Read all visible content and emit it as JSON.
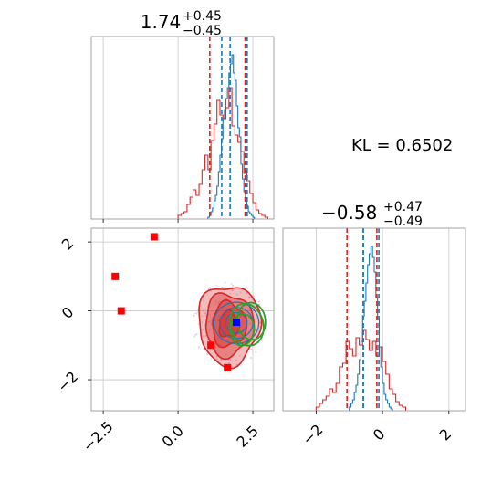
{
  "chart_data": {
    "type": "corner",
    "panels": [
      {
        "id": "hist-x",
        "type": "histogram",
        "title": {
          "value": "1.74",
          "plus": "+0.45",
          "minus": "−0.45"
        },
        "xlim": [
          -2.9,
          3.2
        ],
        "ylim": [
          0,
          1.0
        ],
        "grid": true,
        "quantiles": [
          {
            "color": "#d62728",
            "values": [
              1.06,
              2.24
            ]
          },
          {
            "color": "#1f77b4",
            "values": [
              1.46,
              2.31
            ]
          },
          {
            "color": "#1f77b4",
            "median": 1.74
          }
        ],
        "series": [
          {
            "color": "#d62728",
            "bin_start": 0.0,
            "bin_width": 0.1,
            "counts": [
              0.02,
              0.03,
              0.04,
              0.08,
              0.12,
              0.16,
              0.13,
              0.19,
              0.27,
              0.35,
              0.27,
              0.43,
              0.52,
              0.65,
              0.57,
              0.55,
              0.61,
              0.72,
              0.51,
              0.46,
              0.42,
              0.37,
              0.25,
              0.21,
              0.14,
              0.09,
              0.05,
              0.03,
              0.02,
              0.01
            ]
          },
          {
            "color": "#1f77b4",
            "bin_start": 1.0,
            "bin_width": 0.05,
            "counts": [
              0.01,
              0.02,
              0.04,
              0.06,
              0.1,
              0.13,
              0.18,
              0.26,
              0.35,
              0.44,
              0.55,
              0.6,
              0.66,
              0.72,
              0.8,
              0.85,
              0.9,
              0.8,
              0.76,
              0.62,
              0.5,
              0.45,
              0.3,
              0.22,
              0.15,
              0.1,
              0.07,
              0.04,
              0.03,
              0.02,
              0.01
            ]
          }
        ]
      },
      {
        "id": "hist-y",
        "type": "histogram",
        "title": {
          "value": "−0.58",
          "plus": "+0.47",
          "minus": "−0.49"
        },
        "xlim": [
          -3.0,
          2.5
        ],
        "xticks": [
          -2,
          0,
          2
        ],
        "xticklabels": [
          "−2",
          "0",
          "2"
        ],
        "ylim": [
          0,
          1.0
        ],
        "grid": true,
        "quantiles": [
          {
            "color": "#d62728",
            "values": [
              -1.07,
              -0.17
            ]
          },
          {
            "color": "#1f77b4",
            "values": [
              -0.58,
              -0.11
            ]
          },
          {
            "color": "#1f77b4",
            "median": -0.58
          }
        ],
        "series": [
          {
            "color": "#d62728",
            "bin_start": -2.0,
            "bin_width": 0.1,
            "counts": [
              0.02,
              0.04,
              0.06,
              0.08,
              0.12,
              0.1,
              0.15,
              0.24,
              0.26,
              0.38,
              0.34,
              0.3,
              0.4,
              0.36,
              0.44,
              0.39,
              0.33,
              0.38,
              0.3,
              0.35,
              0.27,
              0.2,
              0.12,
              0.09,
              0.05,
              0.03,
              0.02
            ]
          },
          {
            "color": "#1f77b4",
            "bin_start": -1.0,
            "bin_width": 0.05,
            "counts": [
              0.02,
              0.04,
              0.06,
              0.1,
              0.14,
              0.2,
              0.28,
              0.38,
              0.52,
              0.6,
              0.7,
              0.8,
              0.86,
              0.9,
              0.84,
              0.76,
              0.62,
              0.5,
              0.35,
              0.24,
              0.15,
              0.09,
              0.06,
              0.04,
              0.02,
              0.01
            ]
          }
        ]
      },
      {
        "id": "joint",
        "type": "scatter-contour",
        "xlim": [
          -2.9,
          3.2
        ],
        "ylim": [
          -2.9,
          2.4
        ],
        "xticks": [
          -2.5,
          0.0,
          2.5
        ],
        "xticklabels": [
          "−2.5",
          "0.0",
          "2.5"
        ],
        "yticks": [
          -2,
          0,
          2
        ],
        "yticklabels": [
          "−2",
          "0",
          "2"
        ],
        "grid": true,
        "contour_center": [
          1.7,
          -0.4
        ],
        "contour_color": "#d62728",
        "blue_contour_center": [
          1.95,
          -0.35
        ],
        "green_ellipse_centers": [
          [
            2.3,
            -0.4
          ],
          [
            2.45,
            -0.3
          ],
          [
            2.15,
            -0.55
          ]
        ],
        "blue_point": [
          1.95,
          -0.33
        ],
        "red_points": [
          [
            -0.8,
            2.15
          ],
          [
            -2.1,
            1.0
          ],
          [
            -1.9,
            0.0
          ],
          [
            1.1,
            -1.0
          ],
          [
            1.65,
            -1.65
          ]
        ]
      }
    ],
    "annotation": "KL = 0.6502"
  }
}
